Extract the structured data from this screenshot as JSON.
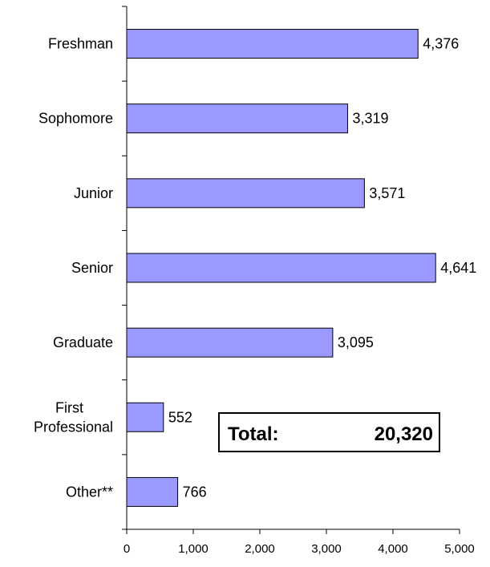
{
  "chart_data": {
    "type": "bar",
    "orientation": "horizontal",
    "categories": [
      "Freshman",
      "Sophomore",
      "Junior",
      "Senior",
      "Graduate",
      "First Professional",
      "Other**"
    ],
    "category_lines": [
      [
        "Freshman"
      ],
      [
        "Sophomore"
      ],
      [
        "Junior"
      ],
      [
        "Senior"
      ],
      [
        "Graduate"
      ],
      [
        "First",
        "Professional"
      ],
      [
        "Other**"
      ]
    ],
    "values": [
      4376,
      3319,
      3571,
      4641,
      3095,
      552,
      766
    ],
    "value_labels": [
      "4,376",
      "3,319",
      "3,571",
      "4,641",
      "3,095",
      "552",
      "766"
    ],
    "xlim": [
      0,
      5000
    ],
    "xticks": [
      0,
      1000,
      2000,
      3000,
      4000,
      5000
    ],
    "xtick_labels": [
      "0",
      "1,000",
      "2,000",
      "3,000",
      "4,000",
      "5,000"
    ],
    "bar_color": "#9999ff",
    "grid": false,
    "title": "",
    "xlabel": "",
    "ylabel": ""
  },
  "total_box": {
    "label": "Total:",
    "value": "20,320"
  }
}
